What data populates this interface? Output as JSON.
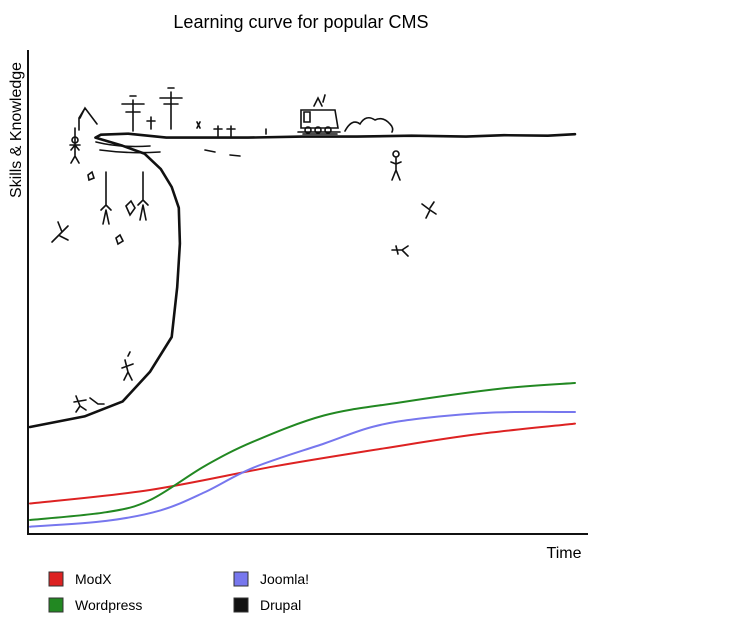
{
  "chart_data": {
    "type": "line",
    "title": "Learning curve for popular CMS",
    "xlabel": "Time",
    "ylabel": "Skills & Knowledge",
    "xlim": [
      0,
      100
    ],
    "ylim": [
      0,
      100
    ],
    "grid": false,
    "legend_position": "bottom-left",
    "series": [
      {
        "name": "ModX",
        "color": "#dd2222",
        "style": "smooth",
        "points": [
          [
            0,
            6.3
          ],
          [
            22,
            9.1
          ],
          [
            45,
            14.0
          ],
          [
            65,
            17.7
          ],
          [
            82,
            20.6
          ],
          [
            100,
            22.8
          ]
        ]
      },
      {
        "name": "Wordpress",
        "color": "#228822",
        "style": "smooth",
        "points": [
          [
            0,
            2.9
          ],
          [
            14,
            4.5
          ],
          [
            22,
            7.0
          ],
          [
            32,
            14.0
          ],
          [
            41,
            19.1
          ],
          [
            54,
            24.5
          ],
          [
            68,
            27.2
          ],
          [
            87,
            30.1
          ],
          [
            100,
            31.2
          ]
        ]
      },
      {
        "name": "Joomla!",
        "color": "#7777ee",
        "style": "smooth",
        "points": [
          [
            0,
            1.5
          ],
          [
            14,
            2.7
          ],
          [
            24,
            4.9
          ],
          [
            32,
            8.6
          ],
          [
            41,
            13.7
          ],
          [
            54,
            18.7
          ],
          [
            63,
            22.2
          ],
          [
            72,
            23.9
          ],
          [
            85,
            25.1
          ],
          [
            100,
            25.2
          ]
        ]
      },
      {
        "name": "Drupal",
        "color": "#111111",
        "style": "sketch",
        "points": [
          [
            0,
            22.1
          ],
          [
            10,
            24.3
          ],
          [
            17,
            27.4
          ],
          [
            22,
            33.5
          ],
          [
            26,
            40.7
          ],
          [
            27,
            51.0
          ],
          [
            27.5,
            60.0
          ],
          [
            27.3,
            67.4
          ],
          [
            26,
            71.7
          ],
          [
            24,
            75.4
          ],
          [
            21,
            78.6
          ],
          [
            17,
            80.2
          ],
          [
            12,
            81.9
          ],
          [
            13,
            82.5
          ],
          [
            18,
            82.7
          ],
          [
            25,
            81.9
          ],
          [
            32,
            81.9
          ],
          [
            40,
            81.9
          ],
          [
            50,
            82.1
          ],
          [
            60,
            82.1
          ],
          [
            70,
            82.3
          ],
          [
            80,
            82.1
          ],
          [
            87,
            82.4
          ],
          [
            95,
            82.3
          ],
          [
            100,
            82.6
          ]
        ]
      }
    ]
  }
}
